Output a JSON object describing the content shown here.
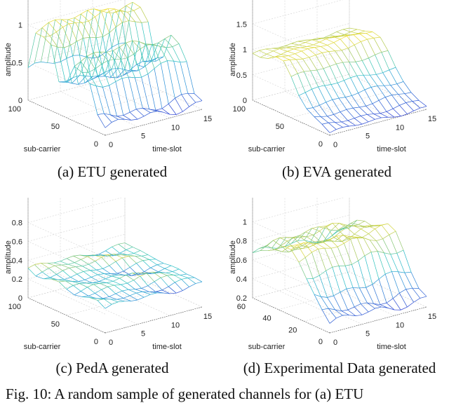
{
  "figure_caption": "Fig. 10: A random sample of generated channels for (a) ETU",
  "chart_data": [
    {
      "type": "surface",
      "caption": "(a) ETU generated",
      "xlabel": "time-slot",
      "ylabel": "sub-carrier",
      "zlabel": "amplitude",
      "xlim": [
        0,
        15
      ],
      "ylim": [
        0,
        100
      ],
      "zlim": [
        0,
        1.35
      ],
      "xticks": [
        "0",
        "5",
        "10",
        "15"
      ],
      "yticks": [
        "0",
        "50",
        "100"
      ],
      "zticks": [
        "0",
        "0.5",
        "1"
      ],
      "zticks_values": [
        0,
        0.5,
        1
      ],
      "sub_carrier_samples": [
        0,
        10,
        20,
        30,
        40,
        50,
        60,
        70,
        80,
        90,
        100
      ],
      "amplitude_profile": [
        0.1,
        0.15,
        0.55,
        0.75,
        0.8,
        0.45,
        0.35,
        0.85,
        1.0,
        1.0,
        0.4
      ],
      "time_variation": 0.08,
      "grid": true
    },
    {
      "type": "surface",
      "caption": "(b) EVA generated",
      "xlabel": "time-slot",
      "ylabel": "sub-carrier",
      "zlabel": "amplitude",
      "xlim": [
        0,
        15
      ],
      "ylim": [
        0,
        100
      ],
      "zlim": [
        0,
        2.0
      ],
      "xticks": [
        "0",
        "5",
        "10",
        "15"
      ],
      "yticks": [
        "0",
        "50",
        "100"
      ],
      "zticks": [
        "0",
        "0.5",
        "1",
        "1.5"
      ],
      "zticks_values": [
        0,
        0.5,
        1,
        1.5
      ],
      "sub_carrier_samples": [
        0,
        10,
        20,
        30,
        40,
        50,
        60,
        70,
        80,
        90,
        100
      ],
      "amplitude_profile": [
        0.05,
        0.1,
        0.2,
        0.35,
        0.55,
        0.8,
        1.0,
        1.05,
        1.0,
        0.95,
        0.9
      ],
      "time_variation": 0.05,
      "grid": true
    },
    {
      "type": "surface",
      "caption": "(c) PedA generated",
      "xlabel": "time-slot",
      "ylabel": "sub-carrier",
      "zlabel": "amplitude",
      "xlim": [
        0,
        15
      ],
      "ylim": [
        0,
        100
      ],
      "zlim": [
        0,
        1.08
      ],
      "xticks": [
        "0",
        "5",
        "10",
        "15"
      ],
      "yticks": [
        "0",
        "50",
        "100"
      ],
      "zticks": [
        "0",
        "0.2",
        "0.4",
        "0.6",
        "0.8"
      ],
      "zticks_values": [
        0,
        0.2,
        0.4,
        0.6,
        0.8
      ],
      "sub_carrier_samples": [
        0,
        10,
        20,
        30,
        40,
        50,
        60,
        70,
        80,
        90,
        100
      ],
      "amplitude_profile": [
        0.26,
        0.27,
        0.28,
        0.3,
        0.29,
        0.27,
        0.28,
        0.3,
        0.31,
        0.3,
        0.3
      ],
      "time_variation": 0.04,
      "grid": true
    },
    {
      "type": "surface",
      "caption": "(d) Experimental Data generated",
      "xlabel": "time-slot",
      "ylabel": "sub-carrier",
      "zlabel": "amplitude",
      "xlim": [
        0,
        15
      ],
      "ylim": [
        0,
        60
      ],
      "zlim": [
        0.2,
        1.27
      ],
      "xticks": [
        "0",
        "5",
        "10",
        "15"
      ],
      "yticks": [
        "0",
        "20",
        "40",
        "60"
      ],
      "zticks": [
        "0.2",
        "0.4",
        "0.6",
        "0.8",
        "1"
      ],
      "zticks_values": [
        0.2,
        0.4,
        0.6,
        0.8,
        1
      ],
      "sub_carrier_samples": [
        0,
        6,
        12,
        18,
        24,
        30,
        36,
        42,
        48,
        54,
        60
      ],
      "amplitude_profile": [
        0.3,
        0.35,
        0.5,
        0.7,
        0.85,
        0.88,
        0.83,
        0.8,
        0.82,
        0.78,
        0.65
      ],
      "time_variation": 0.06,
      "grid": true
    }
  ]
}
